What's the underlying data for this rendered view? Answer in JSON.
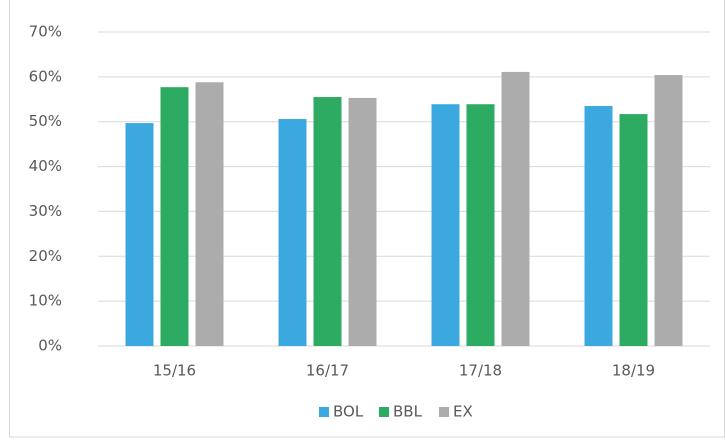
{
  "chart_data": {
    "type": "bar",
    "categories": [
      "15/16",
      "16/17",
      "17/18",
      "18/19"
    ],
    "series": [
      {
        "name": "BOL",
        "color": "#3ba9e0",
        "values": [
          49.7,
          50.6,
          53.9,
          53.5
        ]
      },
      {
        "name": "BBL",
        "color": "#2eab62",
        "values": [
          57.7,
          55.5,
          53.9,
          51.7
        ]
      },
      {
        "name": "EX",
        "color": "#acacac",
        "values": [
          58.8,
          55.3,
          61.1,
          60.4
        ]
      }
    ],
    "ylim": [
      0,
      70
    ],
    "yticks": [
      {
        "value": 0,
        "label": "0%"
      },
      {
        "value": 10,
        "label": "10%"
      },
      {
        "value": 20,
        "label": "20%"
      },
      {
        "value": 30,
        "label": "30%"
      },
      {
        "value": 40,
        "label": "40%"
      },
      {
        "value": 50,
        "label": "50%"
      },
      {
        "value": 60,
        "label": "60%"
      },
      {
        "value": 70,
        "label": "70%"
      }
    ],
    "grid": true,
    "legend": "bottom"
  }
}
